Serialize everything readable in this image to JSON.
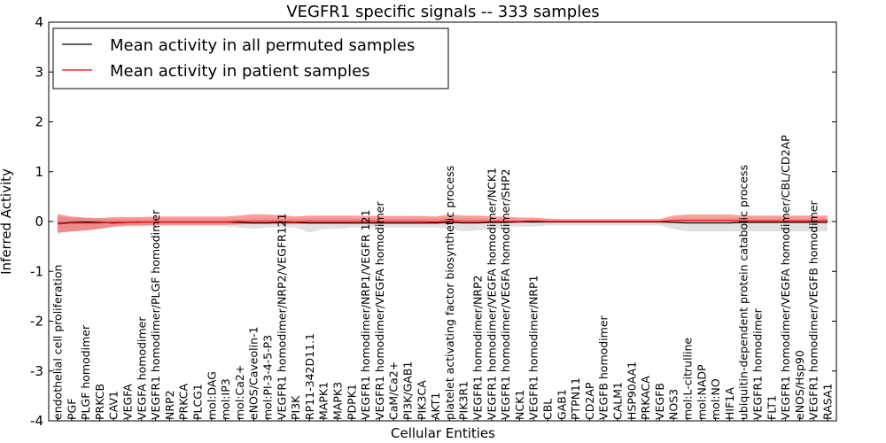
{
  "chart_data": {
    "type": "line",
    "title": "VEGFR1 specific signals -- 333 samples",
    "xlabel": "Cellular Entities",
    "ylabel": "Inferred Activity",
    "ylim": [
      -4,
      4
    ],
    "yticks": [
      -4,
      -3,
      -2,
      -1,
      0,
      1,
      2,
      3,
      4
    ],
    "grid": false,
    "legend_position": "top-left",
    "categories": [
      "endothelial cell proliferation",
      "PGF",
      "PLGF homodimer",
      "PRKCB",
      "CAV1",
      "VEGFA",
      "VEGFA homodimer",
      "VEGFR1 homodimer/PLGF homodimer",
      "NRP2",
      "PRKCA",
      "PLCG1",
      "mol:DAG",
      "mol:IP3",
      "mol:Ca2+",
      "eNOS/Caveolin-1",
      "mol:PI-3-4-5-P3",
      "VEGFR1 homodimer/NRP2/VEGFR121",
      "PI3K",
      "RP11-342D11.1",
      "MAPK1",
      "MAPK3",
      "PDPK1",
      "VEGFR1 homodimer/NRP1/VEGFR 121",
      "VEGFR1 homodimer/VEGFA homodimer",
      "CaM/Ca2+",
      "PI3K/GAB1",
      "PIK3CA",
      "AKT1",
      "platelet activating factor biosynthetic process",
      "PIK3R1",
      "VEGFR1 homodimer/NRP2",
      "VEGFR1 homodimer/VEGFA homodimer/NCK1",
      "VEGFR1 homodimer/VEGFA homodimer/SHP2",
      "NCK1",
      "VEGFR1 homodimer/NRP1",
      "CBL",
      "GAB1",
      "PTPN11",
      "CD2AP",
      "VEGFB homodimer",
      "CALM1",
      "HSP90AA1",
      "PRKACA",
      "VEGFB",
      "NOS3",
      "mol:L-citrulline",
      "mol:NADP",
      "mol:NO",
      "HIF1A",
      "ubiquitin-dependent protein catabolic process",
      "VEGFR1 homodimer",
      "FLT1",
      "VEGFR1 homodimer/VEGFA homodimer/CBL/CD2AP",
      "eNOS/Hsp90",
      "VEGFR1 homodimer/VEGFB homodimer",
      "RASA1"
    ],
    "series": [
      {
        "name": "Mean activity in all permuted samples",
        "color": "#000000",
        "values": [
          -0.04,
          -0.02,
          -0.01,
          -0.02,
          -0.03,
          -0.02,
          -0.01,
          -0.01,
          -0.01,
          -0.01,
          -0.01,
          -0.01,
          -0.01,
          -0.02,
          -0.03,
          -0.03,
          -0.02,
          -0.02,
          -0.03,
          -0.03,
          -0.03,
          -0.03,
          -0.03,
          -0.03,
          -0.03,
          -0.03,
          -0.03,
          -0.03,
          -0.02,
          -0.03,
          -0.03,
          -0.02,
          -0.02,
          -0.01,
          -0.01,
          -0.01,
          -0.01,
          -0.01,
          -0.01,
          -0.01,
          -0.01,
          -0.01,
          -0.01,
          -0.01,
          -0.02,
          -0.03,
          -0.03,
          -0.03,
          -0.03,
          -0.02,
          -0.02,
          -0.02,
          -0.02,
          -0.02,
          -0.02,
          -0.02
        ],
        "band_lower": [
          -0.25,
          -0.2,
          -0.18,
          -0.15,
          -0.12,
          -0.1,
          -0.1,
          -0.1,
          -0.1,
          -0.1,
          -0.1,
          -0.1,
          -0.1,
          -0.12,
          -0.15,
          -0.12,
          -0.12,
          -0.12,
          -0.22,
          -0.15,
          -0.15,
          -0.12,
          -0.12,
          -0.12,
          -0.12,
          -0.12,
          -0.12,
          -0.12,
          -0.15,
          -0.2,
          -0.18,
          -0.15,
          -0.12,
          -0.1,
          -0.1,
          -0.08,
          -0.08,
          -0.08,
          -0.08,
          -0.08,
          -0.08,
          -0.08,
          -0.08,
          -0.08,
          -0.15,
          -0.2,
          -0.2,
          -0.2,
          -0.2,
          -0.2,
          -0.2,
          -0.2,
          -0.2,
          -0.2,
          -0.2,
          -0.2
        ],
        "band_upper": [
          0.1,
          0.08,
          0.07,
          0.06,
          0.05,
          0.05,
          0.05,
          0.05,
          0.05,
          0.05,
          0.05,
          0.05,
          0.05,
          0.05,
          0.06,
          0.06,
          0.06,
          0.06,
          0.06,
          0.06,
          0.06,
          0.06,
          0.06,
          0.06,
          0.06,
          0.06,
          0.06,
          0.06,
          0.06,
          0.06,
          0.06,
          0.05,
          0.05,
          0.04,
          0.04,
          0.03,
          0.03,
          0.03,
          0.03,
          0.03,
          0.03,
          0.03,
          0.03,
          0.03,
          0.05,
          0.06,
          0.06,
          0.06,
          0.06,
          0.06,
          0.06,
          0.06,
          0.06,
          0.06,
          0.06,
          0.06
        ]
      },
      {
        "name": "Mean activity in patient samples",
        "color": "#ff0000",
        "values": [
          -0.05,
          -0.03,
          -0.03,
          -0.03,
          -0.02,
          -0.02,
          -0.01,
          -0.01,
          -0.01,
          -0.01,
          -0.01,
          -0.01,
          -0.01,
          0.0,
          0.0,
          0.0,
          0.0,
          -0.01,
          0.0,
          0.0,
          0.0,
          0.0,
          0.0,
          0.0,
          0.0,
          0.0,
          0.0,
          -0.01,
          0.01,
          0.0,
          0.0,
          0.0,
          0.0,
          0.0,
          0.01,
          0.0,
          0.0,
          0.0,
          0.0,
          0.0,
          0.0,
          0.0,
          0.0,
          0.0,
          0.02,
          0.02,
          0.02,
          0.02,
          0.02,
          0.01,
          0.01,
          0.01,
          0.01,
          0.01,
          0.01,
          0.02
        ],
        "band_lower": [
          -0.22,
          -0.2,
          -0.18,
          -0.15,
          -0.1,
          -0.08,
          -0.08,
          -0.07,
          -0.07,
          -0.07,
          -0.07,
          -0.07,
          -0.07,
          -0.06,
          -0.05,
          -0.05,
          -0.05,
          -0.05,
          -0.05,
          -0.05,
          -0.05,
          -0.05,
          -0.05,
          -0.05,
          -0.05,
          -0.05,
          -0.05,
          -0.05,
          -0.03,
          -0.03,
          -0.03,
          -0.03,
          -0.03,
          -0.02,
          -0.02,
          -0.02,
          -0.02,
          -0.02,
          -0.02,
          -0.02,
          -0.02,
          -0.02,
          -0.02,
          -0.02,
          -0.01,
          -0.01,
          -0.01,
          -0.01,
          -0.01,
          -0.02,
          -0.02,
          -0.02,
          -0.02,
          -0.02,
          -0.02,
          -0.01
        ],
        "band_upper": [
          0.15,
          0.1,
          0.08,
          0.07,
          0.09,
          0.09,
          0.09,
          0.1,
          0.1,
          0.1,
          0.1,
          0.1,
          0.1,
          0.12,
          0.15,
          0.14,
          0.13,
          0.1,
          0.12,
          0.12,
          0.12,
          0.12,
          0.11,
          0.11,
          0.11,
          0.11,
          0.11,
          0.1,
          0.14,
          0.12,
          0.12,
          0.1,
          0.1,
          0.08,
          0.08,
          0.06,
          0.05,
          0.05,
          0.05,
          0.05,
          0.05,
          0.05,
          0.05,
          0.05,
          0.12,
          0.14,
          0.14,
          0.14,
          0.14,
          0.12,
          0.12,
          0.12,
          0.12,
          0.12,
          0.12,
          0.12
        ]
      }
    ]
  }
}
